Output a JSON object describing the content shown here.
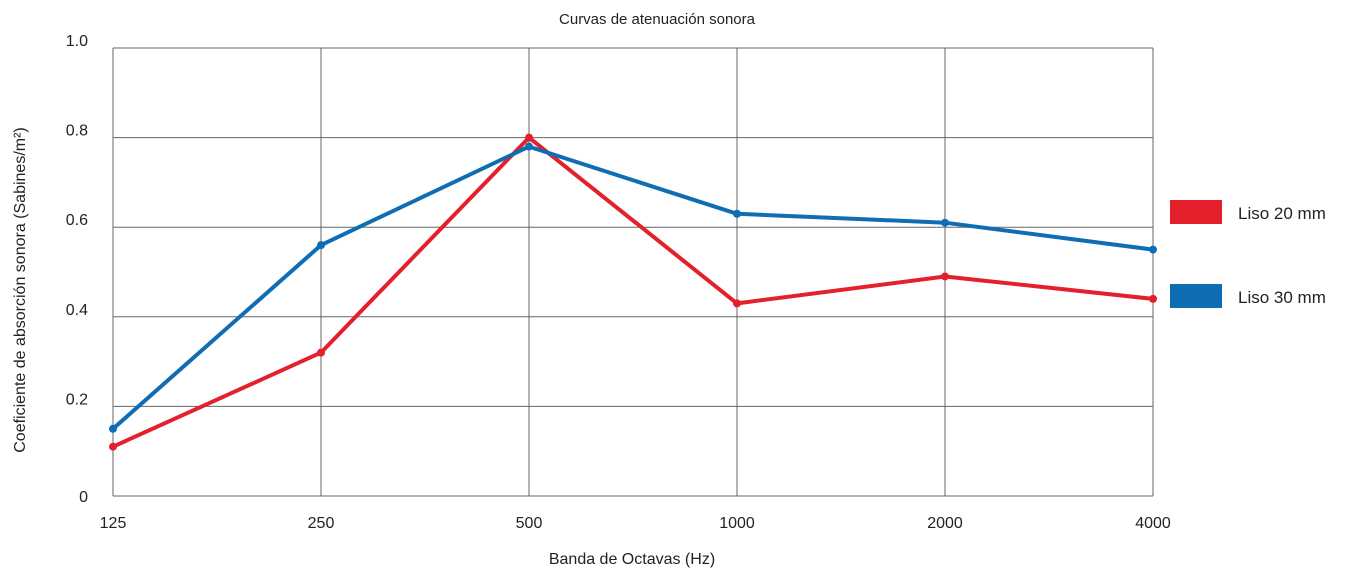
{
  "chart_data": {
    "type": "line",
    "title": "Curvas de atenuación sonora",
    "xlabel": "Banda de Octavas (Hz)",
    "ylabel": "Coeficiente de absorción sonora (Sabines/m²)",
    "categories": [
      "125",
      "250",
      "500",
      "1000",
      "2000",
      "4000"
    ],
    "ylim": [
      0,
      1.0
    ],
    "yticks": [
      "0",
      "0.2",
      "0.4",
      "0.6",
      "0.8",
      "1.0"
    ],
    "grid": true,
    "legend_position": "right",
    "series": [
      {
        "name": "Liso 20 mm",
        "color": "#e3202c",
        "values": [
          0.11,
          0.32,
          0.8,
          0.43,
          0.49,
          0.44
        ]
      },
      {
        "name": "Liso 30 mm",
        "color": "#0f6db4",
        "values": [
          0.15,
          0.56,
          0.78,
          0.63,
          0.61,
          0.55
        ]
      }
    ]
  }
}
